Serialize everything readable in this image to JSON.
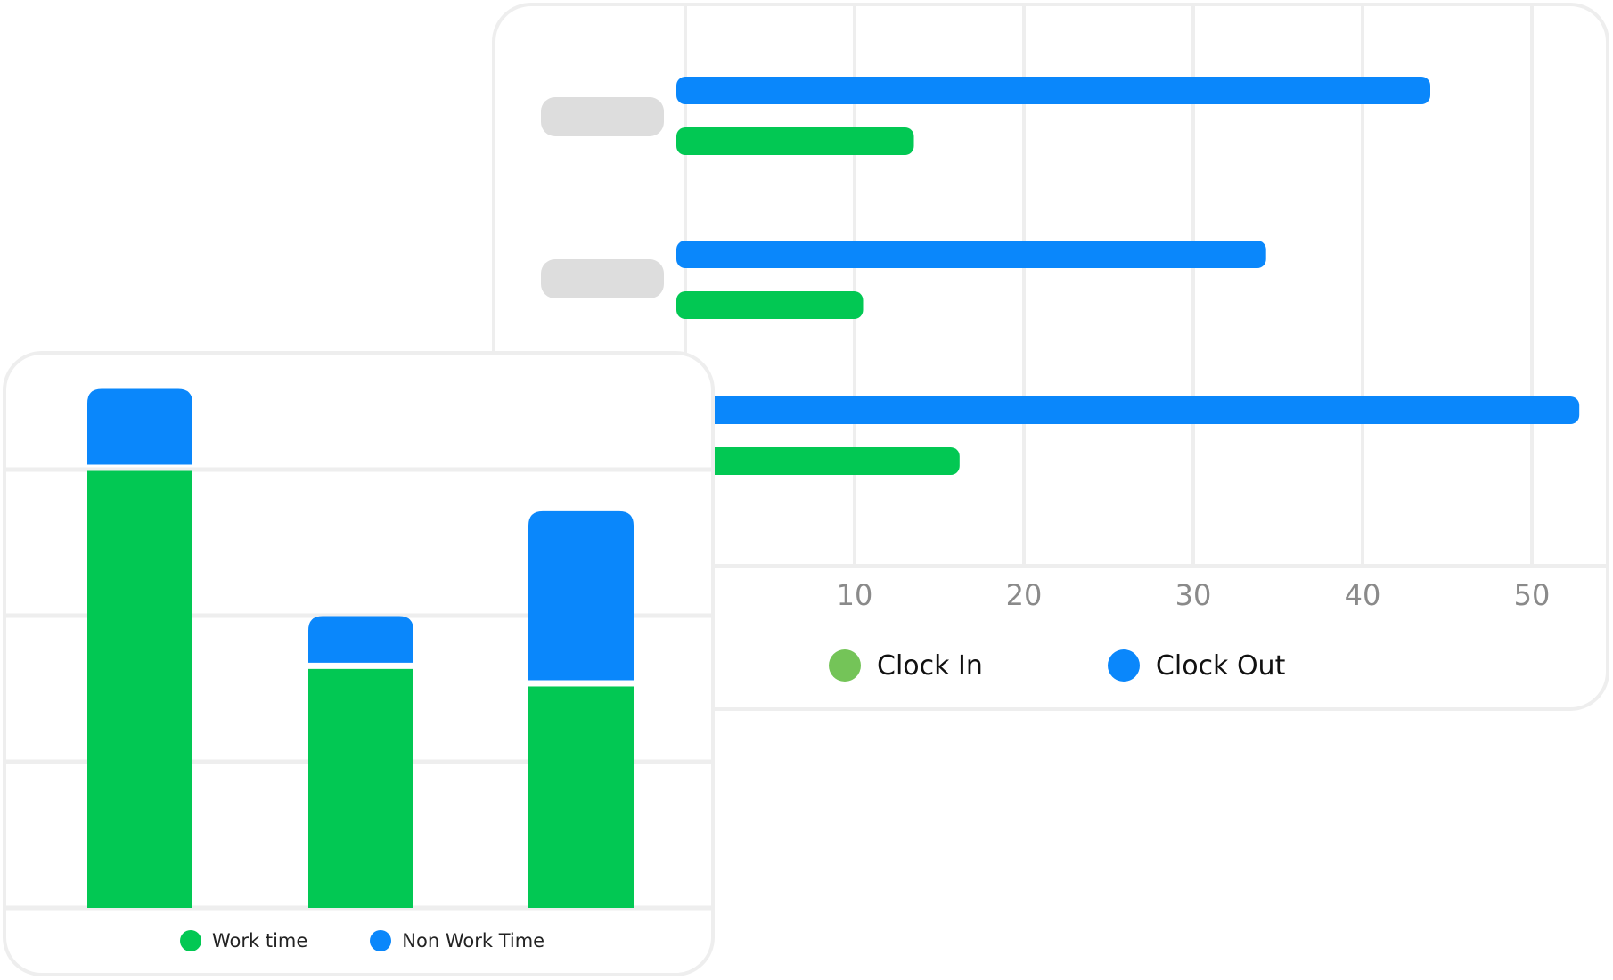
{
  "chart_data": [
    {
      "type": "bar",
      "orientation": "horizontal",
      "categories": [
        "",
        "",
        ""
      ],
      "series": [
        {
          "name": "Clock Out",
          "color": "#0a87fb",
          "values": [
            44,
            34.3,
            52.8
          ]
        },
        {
          "name": "Clock In",
          "color": "#02c853",
          "values": [
            13.5,
            10.5,
            16.2
          ]
        }
      ],
      "xlim": [
        0,
        54
      ],
      "x_ticks": [
        10,
        20,
        30,
        40,
        50
      ],
      "x_tick_labels": [
        "10",
        "20",
        "30",
        "40",
        "50"
      ],
      "grid": "vertical",
      "legend": [
        {
          "label": "Clock In",
          "color": "#74c458"
        },
        {
          "label": "Clock Out",
          "color": "#0a87fb"
        }
      ],
      "legend_position": "bottom"
    },
    {
      "type": "bar",
      "stacked": true,
      "categories": [
        "",
        "",
        ""
      ],
      "series": [
        {
          "name": "Work time",
          "color": "#02c853",
          "values": [
            7.5,
            4.1,
            3.8
          ]
        },
        {
          "name": "Non Work Time",
          "color": "#0a87fb",
          "values": [
            1.3,
            0.8,
            2.9
          ]
        }
      ],
      "ylim": [
        0,
        9
      ],
      "grid": "horizontal",
      "legend": [
        {
          "label": "Work time",
          "color": "#02c853"
        },
        {
          "label": "Non Work Time",
          "color": "#0a87fb"
        }
      ],
      "legend_position": "bottom"
    }
  ],
  "placeholders": {
    "color": "#dddddd"
  }
}
